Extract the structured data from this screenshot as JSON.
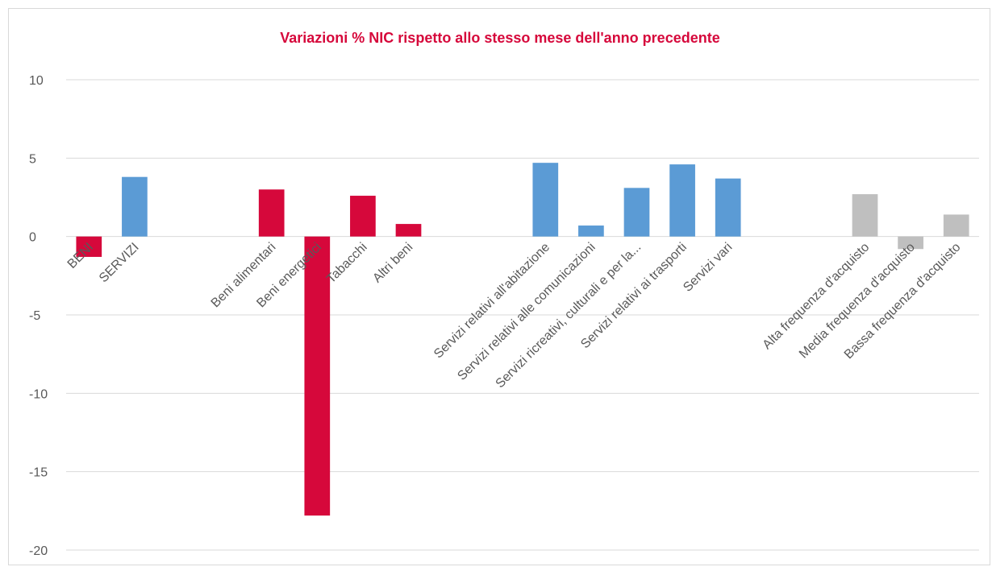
{
  "chart_data": {
    "type": "bar",
    "title": "Variazioni % NIC rispetto allo stesso mese dell'anno precedente",
    "title_color": "#d6083b",
    "categories": [
      "BENI",
      "SERVIZI",
      null,
      null,
      "Beni alimentari",
      "Beni energetici",
      "Tabacchi",
      "Altri beni",
      null,
      null,
      "Servizi relativi all'abitazione",
      "Servizi relativi alle comunicazioni",
      "Servizi ricreativi, culturali e per la...",
      "Servizi relativi ai trasporti",
      "Servizi vari",
      null,
      null,
      "Alta frequenza d'acquisto",
      "Media frequenza d'acquisto",
      "Bassa frequenza d'acquisto"
    ],
    "values": [
      -1.3,
      3.8,
      null,
      null,
      3.0,
      -17.8,
      2.6,
      0.8,
      null,
      null,
      4.7,
      0.7,
      3.1,
      4.6,
      3.7,
      null,
      null,
      2.7,
      -0.8,
      1.4
    ],
    "colors": [
      "#d6083b",
      "#5b9bd5",
      null,
      null,
      "#d6083b",
      "#d6083b",
      "#d6083b",
      "#d6083b",
      null,
      null,
      "#5b9bd5",
      "#5b9bd5",
      "#5b9bd5",
      "#5b9bd5",
      "#5b9bd5",
      null,
      null,
      "#bfbfbf",
      "#bfbfbf",
      "#bfbfbf"
    ],
    "ylim": [
      -20,
      10
    ],
    "yticks": [
      10,
      5,
      0,
      -5,
      -10,
      -15,
      -20
    ],
    "grid": true
  }
}
